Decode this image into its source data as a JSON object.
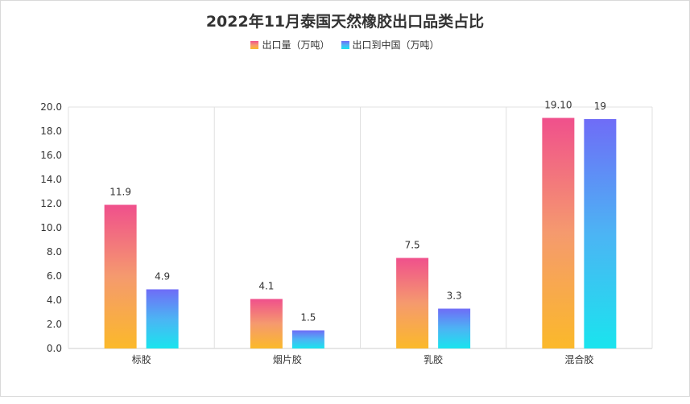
{
  "chart_data": {
    "type": "bar",
    "title": "2022年11月泰国天然橡胶出口品类占比",
    "categories": [
      "标胶",
      "烟片胶",
      "乳胶",
      "混合胶"
    ],
    "series": [
      {
        "name": "出口量（万吨）",
        "values": [
          11.9,
          4.1,
          7.5,
          19.1
        ],
        "labels": [
          "11.9",
          "4.1",
          "7.5",
          "19.10"
        ],
        "gradient": [
          "#f0508c",
          "#f59a6e",
          "#fbb92a"
        ]
      },
      {
        "name": "出口到中国（万吨）",
        "values": [
          4.9,
          1.5,
          3.3,
          19
        ],
        "labels": [
          "4.9",
          "1.5",
          "3.3",
          "19"
        ],
        "gradient": [
          "#6f6cf7",
          "#4cb4f4",
          "#1ae4ee"
        ]
      }
    ],
    "y_ticks": [
      "0.0",
      "2.0",
      "4.0",
      "6.0",
      "8.0",
      "10.0",
      "12.0",
      "14.0",
      "16.0",
      "18.0",
      "20.0"
    ],
    "ylim": [
      0,
      20
    ],
    "xlabel": "",
    "ylabel": "",
    "legend_position": "top-center",
    "grid": "vertical category separators"
  }
}
